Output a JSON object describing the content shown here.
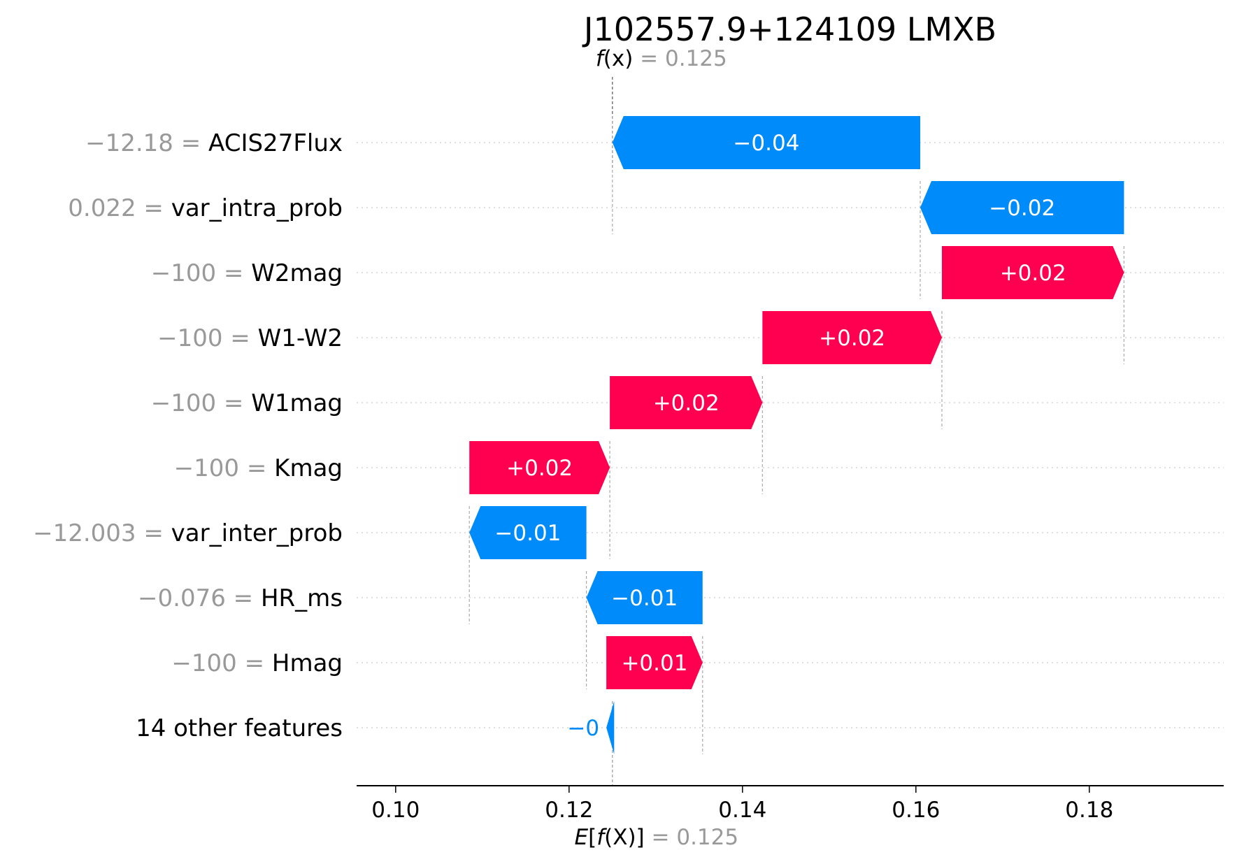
{
  "chart_data": {
    "type": "waterfall",
    "title": "J102557.9+124109 LMXB",
    "fx": {
      "label_italic": "f",
      "label_rest": "(x)",
      "eq": " = ",
      "value": 0.125,
      "value_text": "0.125"
    },
    "ex": {
      "label_pre": "E",
      "label_open": "[",
      "label_italic": "f",
      "label_rest": "(X)]",
      "eq": " = ",
      "value": 0.125,
      "value_text": "0.125"
    },
    "xlim": [
      0.0955,
      0.1955
    ],
    "xticks": [
      0.1,
      0.12,
      0.14,
      0.16,
      0.18
    ],
    "xtick_labels": [
      "0.10",
      "0.12",
      "0.14",
      "0.16",
      "0.18"
    ],
    "rows": [
      {
        "value_text": "−12.18",
        "feature": "ACIS27Flux",
        "start": 0.1605,
        "end": 0.125,
        "label": "−0.04"
      },
      {
        "value_text": "0.022",
        "feature": "var_intra_prob",
        "start": 0.184,
        "end": 0.1605,
        "label": "−0.02"
      },
      {
        "value_text": "−100",
        "feature": "W2mag",
        "start": 0.163,
        "end": 0.184,
        "label": "+0.02"
      },
      {
        "value_text": "−100",
        "feature": "W1-W2",
        "start": 0.1423,
        "end": 0.163,
        "label": "+0.02"
      },
      {
        "value_text": "−100",
        "feature": "W1mag",
        "start": 0.1247,
        "end": 0.1423,
        "label": "+0.02"
      },
      {
        "value_text": "−100",
        "feature": "Kmag",
        "start": 0.1085,
        "end": 0.1247,
        "label": "+0.02"
      },
      {
        "value_text": "−12.003",
        "feature": "var_inter_prob",
        "start": 0.122,
        "end": 0.1085,
        "label": "−0.01"
      },
      {
        "value_text": "−0.076",
        "feature": "HR_ms",
        "start": 0.1354,
        "end": 0.122,
        "label": "−0.01"
      },
      {
        "value_text": "−100",
        "feature": "Hmag",
        "start": 0.1243,
        "end": 0.1354,
        "label": "+0.01"
      },
      {
        "value_text": "",
        "feature": "14 other features",
        "start": 0.1252,
        "end": 0.1243,
        "label": "−0"
      }
    ],
    "colors": {
      "positive": "#ff0051",
      "negative": "#008bfb",
      "positive_text": "#ffffff",
      "negative_text": "#ffffff",
      "negative_outside_text": "#008bfb"
    }
  }
}
